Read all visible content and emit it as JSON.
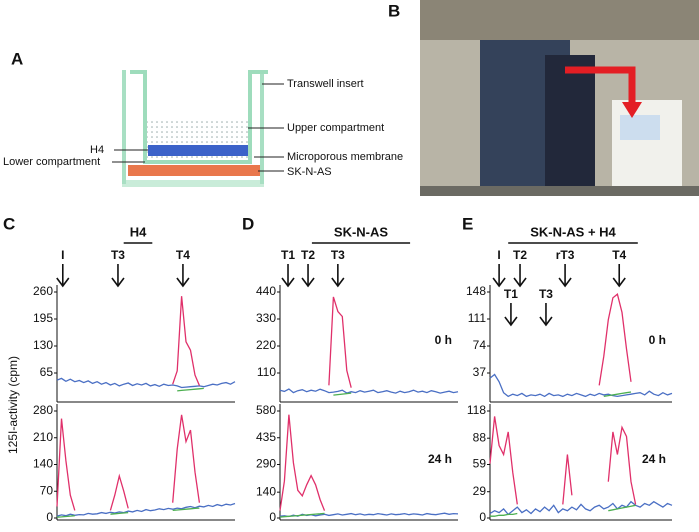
{
  "panels": {
    "a": "A",
    "b": "B",
    "c": "C",
    "d": "D",
    "e": "E"
  },
  "diagram": {
    "transwell_insert": "Transwell insert",
    "upper_compartment": "Upper compartment",
    "h4": "H4",
    "microporous_membrane": "Microporous membrane",
    "lower_compartment": "Lower compartment",
    "sk_n_as": "SK-N-AS"
  },
  "y_axis_label": "125I-activity (cpm)",
  "chart_data": [
    {
      "type": "line",
      "title": "H4",
      "xlim": [
        0,
        40
      ],
      "ylim": [
        0,
        260
      ],
      "yticks": [
        65,
        130,
        195,
        260
      ],
      "arrows": [
        {
          "label": "I",
          "x": 1.3
        },
        {
          "label": "T3",
          "x": 13.7
        },
        {
          "label": "T4",
          "x": 28.3
        }
      ],
      "series": [
        {
          "color": "#4a6fc4",
          "values": [
            48,
            52,
            45,
            50,
            44,
            47,
            42,
            46,
            40,
            44,
            38,
            42,
            36,
            40,
            34,
            38,
            41,
            35,
            39,
            36,
            40,
            34,
            37,
            33,
            38,
            35,
            36,
            34,
            30,
            31,
            32,
            33,
            34,
            32,
            35,
            38,
            36,
            40,
            42,
            38,
            44
          ]
        },
        {
          "color": "#e0306a",
          "values": [
            null,
            null,
            null,
            null,
            null,
            null,
            null,
            null,
            null,
            null,
            null,
            null,
            null,
            null,
            null,
            null,
            null,
            null,
            null,
            null,
            null,
            null,
            null,
            null,
            null,
            null,
            38,
            70,
            250,
            140,
            120,
            60,
            35,
            null,
            null,
            null,
            null,
            null,
            null,
            null,
            null
          ]
        },
        {
          "color": "#4caf50",
          "values": [
            null,
            null,
            null,
            null,
            null,
            null,
            null,
            null,
            null,
            null,
            null,
            null,
            null,
            null,
            null,
            null,
            null,
            null,
            null,
            null,
            null,
            null,
            null,
            null,
            null,
            null,
            null,
            22,
            23,
            24,
            25,
            26,
            27,
            28,
            null,
            null,
            null,
            null,
            null,
            null,
            null
          ]
        }
      ]
    },
    {
      "type": "line",
      "xlim": [
        0,
        40
      ],
      "ylim": [
        0,
        280
      ],
      "yticks": [
        0,
        70,
        140,
        210,
        280
      ],
      "series": [
        {
          "color": "#4a6fc4",
          "values": [
            5,
            8,
            6,
            10,
            7,
            9,
            8,
            12,
            10,
            11,
            14,
            12,
            15,
            13,
            16,
            14,
            18,
            16,
            20,
            17,
            22,
            19,
            21,
            24,
            22,
            25,
            23,
            26,
            24,
            28,
            30,
            27,
            31,
            29,
            33,
            30,
            35,
            32,
            36,
            34,
            38
          ]
        },
        {
          "color": "#e0306a",
          "values": [
            30,
            260,
            150,
            60,
            20,
            null,
            null,
            null,
            null,
            null,
            null,
            null,
            20,
            60,
            110,
            70,
            25,
            null,
            null,
            null,
            null,
            null,
            null,
            null,
            null,
            null,
            40,
            180,
            270,
            200,
            230,
            120,
            40,
            null,
            null,
            null,
            null,
            null,
            null,
            null,
            null
          ]
        },
        {
          "color": "#4caf50",
          "values": [
            2,
            3,
            4,
            5,
            6,
            null,
            null,
            null,
            null,
            null,
            null,
            null,
            10,
            11,
            12,
            13,
            14,
            null,
            null,
            null,
            null,
            null,
            null,
            null,
            null,
            null,
            20,
            21,
            22,
            23,
            24,
            25,
            26,
            null,
            null,
            null,
            null,
            null,
            null,
            null,
            null
          ]
        }
      ]
    },
    {
      "type": "line",
      "title": "SK-N-AS",
      "label": "0 h",
      "xlim": [
        0,
        40
      ],
      "ylim": [
        0,
        440
      ],
      "yticks": [
        110,
        220,
        330,
        440
      ],
      "arrows": [
        {
          "label": "T1",
          "x": 1.8
        },
        {
          "label": "T2",
          "x": 6.3
        },
        {
          "label": "T3",
          "x": 13
        }
      ],
      "series": [
        {
          "color": "#4a6fc4",
          "values": [
            40,
            35,
            45,
            30,
            38,
            42,
            34,
            40,
            36,
            44,
            38,
            30,
            32,
            35,
            40,
            28,
            34,
            30,
            38,
            32,
            36,
            40,
            30,
            34,
            38,
            32,
            28,
            36,
            30,
            34,
            40,
            32,
            36,
            30,
            38,
            34,
            28,
            32,
            36,
            30,
            34
          ]
        },
        {
          "color": "#e0306a",
          "values": [
            null,
            null,
            null,
            null,
            null,
            null,
            null,
            null,
            null,
            null,
            null,
            60,
            420,
            360,
            340,
            120,
            50,
            null,
            null,
            null,
            null,
            null,
            null,
            null,
            null,
            null,
            null,
            null,
            null,
            null,
            null,
            null,
            null,
            null,
            null,
            null,
            null,
            null,
            null,
            null,
            null
          ]
        },
        {
          "color": "#4caf50",
          "values": [
            null,
            null,
            null,
            null,
            null,
            null,
            null,
            null,
            null,
            null,
            null,
            null,
            20,
            22,
            24,
            26,
            28,
            null,
            null,
            null,
            null,
            null,
            null,
            null,
            null,
            null,
            null,
            null,
            null,
            null,
            null,
            null,
            null,
            null,
            null,
            null,
            null,
            null,
            null,
            null,
            null
          ]
        }
      ]
    },
    {
      "type": "line",
      "label": "24 h",
      "xlim": [
        0,
        40
      ],
      "ylim": [
        0,
        580
      ],
      "yticks": [
        0,
        140,
        290,
        435,
        580
      ],
      "series": [
        {
          "color": "#4a6fc4",
          "values": [
            10,
            12,
            8,
            15,
            10,
            20,
            14,
            18,
            12,
            16,
            20,
            14,
            18,
            22,
            16,
            20,
            24,
            18,
            22,
            16,
            20,
            18,
            24,
            20,
            16,
            22,
            18,
            20,
            24,
            18,
            22,
            20,
            16,
            24,
            20,
            18,
            22,
            26,
            20,
            24,
            22
          ]
        },
        {
          "color": "#e0306a",
          "values": [
            40,
            200,
            560,
            300,
            150,
            120,
            180,
            230,
            180,
            100,
            40,
            null,
            null,
            null,
            null,
            null,
            null,
            null,
            null,
            null,
            null,
            null,
            null,
            null,
            null,
            null,
            null,
            null,
            null,
            null,
            null,
            null,
            null,
            null,
            null,
            null,
            null,
            null,
            null,
            null,
            null
          ]
        },
        {
          "color": "#4caf50",
          "values": [
            5,
            7,
            9,
            11,
            13,
            15,
            17,
            19,
            21,
            23,
            25,
            null,
            null,
            null,
            null,
            null,
            null,
            null,
            null,
            null,
            null,
            null,
            null,
            null,
            null,
            null,
            null,
            null,
            null,
            null,
            null,
            null,
            null,
            null,
            null,
            null,
            null,
            null,
            null,
            null,
            null
          ]
        }
      ]
    },
    {
      "type": "line",
      "title": "SK-N-AS + H4",
      "label": "0 h",
      "xlim": [
        0,
        40
      ],
      "ylim": [
        0,
        148
      ],
      "yticks": [
        37,
        74,
        111,
        148
      ],
      "arrows": [
        {
          "label": "I",
          "x": 2
        },
        {
          "label": "T2",
          "x": 6.6
        },
        {
          "label": "rT3",
          "x": 16.5
        },
        {
          "label": "T4",
          "x": 28.4
        }
      ],
      "lower_arrows": [
        {
          "label": "T1",
          "x": 4.6
        },
        {
          "label": "T3",
          "x": 12.3
        }
      ],
      "series": [
        {
          "color": "#4a6fc4",
          "values": [
            30,
            35,
            25,
            10,
            5,
            8,
            6,
            9,
            5,
            7,
            6,
            8,
            5,
            9,
            6,
            7,
            5,
            8,
            6,
            9,
            7,
            5,
            8,
            6,
            9,
            7,
            8,
            6,
            5,
            6,
            7,
            8,
            9,
            10,
            7,
            12,
            8,
            6,
            10,
            7,
            9
          ]
        },
        {
          "color": "#e0306a",
          "values": [
            null,
            null,
            null,
            null,
            null,
            null,
            null,
            null,
            null,
            null,
            null,
            null,
            null,
            null,
            null,
            null,
            null,
            null,
            null,
            null,
            null,
            null,
            null,
            null,
            20,
            60,
            110,
            140,
            145,
            120,
            70,
            25,
            null,
            null,
            null,
            null,
            null,
            null,
            null,
            null,
            null
          ]
        },
        {
          "color": "#4caf50",
          "values": [
            null,
            null,
            null,
            null,
            null,
            null,
            null,
            null,
            null,
            null,
            null,
            null,
            null,
            null,
            null,
            null,
            null,
            null,
            null,
            null,
            null,
            null,
            null,
            null,
            null,
            5,
            6,
            7,
            8,
            9,
            10,
            11,
            null,
            null,
            null,
            null,
            null,
            null,
            null,
            null,
            null
          ]
        }
      ]
    },
    {
      "type": "line",
      "label": "24 h",
      "xlim": [
        0,
        40
      ],
      "ylim": [
        0,
        118
      ],
      "yticks": [
        0,
        29,
        59,
        88,
        118
      ],
      "series": [
        {
          "color": "#4a6fc4",
          "values": [
            5,
            8,
            6,
            10,
            4,
            8,
            12,
            6,
            9,
            5,
            10,
            7,
            12,
            8,
            14,
            6,
            10,
            8,
            12,
            9,
            15,
            10,
            8,
            12,
            14,
            10,
            12,
            16,
            10,
            14,
            12,
            18,
            14,
            12,
            16,
            14,
            18,
            15,
            12,
            16,
            14
          ]
        },
        {
          "color": "#e0306a",
          "values": [
            60,
            112,
            80,
            70,
            95,
            50,
            15,
            null,
            null,
            null,
            null,
            null,
            null,
            null,
            null,
            null,
            15,
            70,
            25,
            null,
            null,
            null,
            null,
            null,
            null,
            null,
            40,
            95,
            70,
            100,
            90,
            40,
            15,
            null,
            null,
            null,
            null,
            null,
            null,
            null,
            null
          ]
        },
        {
          "color": "#4caf50",
          "values": [
            2,
            2,
            3,
            3,
            4,
            4,
            5,
            null,
            null,
            null,
            null,
            null,
            null,
            null,
            null,
            null,
            null,
            null,
            null,
            null,
            null,
            null,
            null,
            null,
            null,
            null,
            8,
            9,
            10,
            11,
            12,
            13,
            14,
            null,
            null,
            null,
            null,
            null,
            null,
            null,
            null
          ]
        }
      ]
    }
  ]
}
